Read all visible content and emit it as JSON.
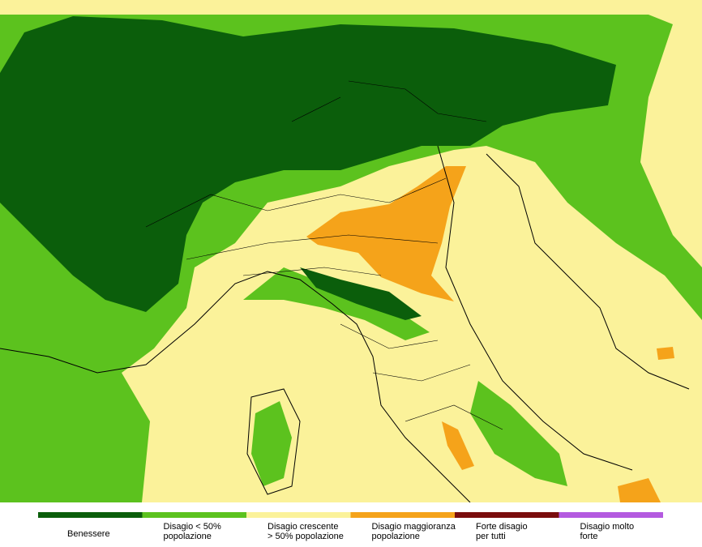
{
  "legend": [
    {
      "color": "#0b5e0b",
      "lines": [
        "Benessere"
      ]
    },
    {
      "color": "#5cc21e",
      "lines": [
        "Disagio < 50%",
        "popolazione"
      ]
    },
    {
      "color": "#fbf29a",
      "lines": [
        "Disagio crescente",
        "> 50% popolazione"
      ]
    },
    {
      "color": "#f5a31a",
      "lines": [
        "Disagio maggioranza",
        "popolazione"
      ]
    },
    {
      "color": "#7a0c0c",
      "lines": [
        "Forte disagio",
        "per tutti"
      ]
    },
    {
      "color": "#b45ae0",
      "lines": [
        "Disagio molto",
        "forte"
      ]
    }
  ]
}
